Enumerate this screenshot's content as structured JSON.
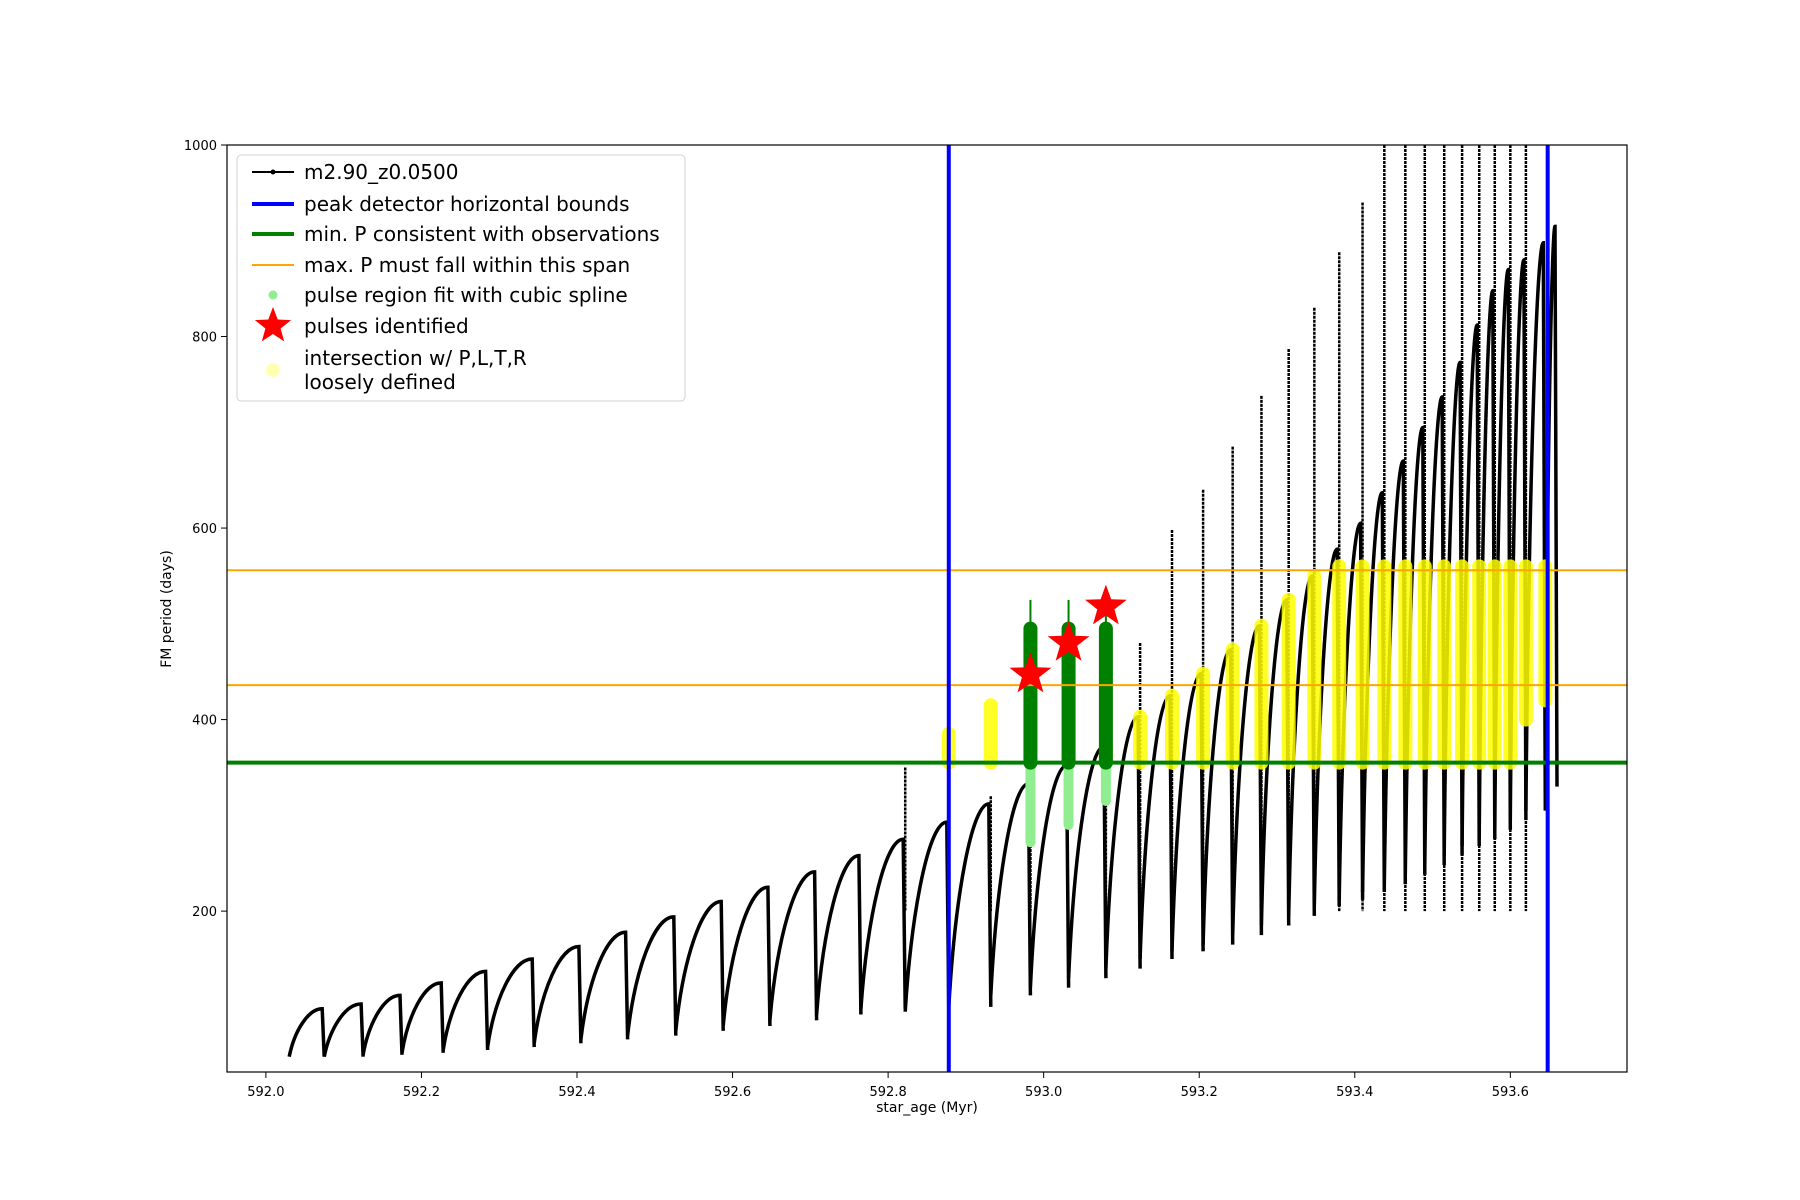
{
  "chart_data": {
    "type": "line",
    "title": "",
    "xlabel": "star_age (Myr)",
    "ylabel": "FM period (days)",
    "xlim": [
      591.95,
      593.75
    ],
    "ylim": [
      32,
      1000
    ],
    "x_ticks": [
      592.0,
      592.2,
      592.4,
      592.6,
      592.8,
      593.0,
      593.2,
      593.4,
      593.6
    ],
    "x_tick_labels": [
      "592.0",
      "592.2",
      "592.4",
      "592.6",
      "592.8",
      "593.0",
      "593.2",
      "593.4",
      "593.6"
    ],
    "y_ticks": [
      200,
      400,
      600,
      800,
      1000
    ],
    "y_tick_labels": [
      "200",
      "400",
      "600",
      "800",
      "1000"
    ],
    "grid": false,
    "legend_position": "top-left",
    "colors": {
      "model": "#000000",
      "bounds": "#0000ff",
      "min_p": "#008000",
      "max_p": "#ffa500",
      "spline": "#90ee90",
      "pulses": "#ff0000",
      "intersection": "#ffff00"
    },
    "series": [
      {
        "name": "m2.90_z0.0500",
        "kind": "line-with-markers",
        "pulse_cycles": [
          {
            "x_start": 592.03,
            "x_end": 592.075,
            "p_min": 48,
            "p_max": 98
          },
          {
            "x_start": 592.075,
            "x_end": 592.125,
            "p_min": 48,
            "p_max": 103
          },
          {
            "x_start": 592.125,
            "x_end": 592.175,
            "p_min": 50,
            "p_max": 112
          },
          {
            "x_start": 592.175,
            "x_end": 592.228,
            "p_min": 52,
            "p_max": 125
          },
          {
            "x_start": 592.228,
            "x_end": 592.285,
            "p_min": 55,
            "p_max": 137
          },
          {
            "x_start": 592.285,
            "x_end": 592.345,
            "p_min": 58,
            "p_max": 150
          },
          {
            "x_start": 592.345,
            "x_end": 592.405,
            "p_min": 62,
            "p_max": 163
          },
          {
            "x_start": 592.405,
            "x_end": 592.465,
            "p_min": 66,
            "p_max": 178
          },
          {
            "x_start": 592.465,
            "x_end": 592.527,
            "p_min": 70,
            "p_max": 194
          },
          {
            "x_start": 592.527,
            "x_end": 592.588,
            "p_min": 75,
            "p_max": 210
          },
          {
            "x_start": 592.588,
            "x_end": 592.648,
            "p_min": 80,
            "p_max": 225
          },
          {
            "x_start": 592.648,
            "x_end": 592.708,
            "p_min": 86,
            "p_max": 241
          },
          {
            "x_start": 592.708,
            "x_end": 592.765,
            "p_min": 92,
            "p_max": 258
          },
          {
            "x_start": 592.765,
            "x_end": 592.822,
            "p_min": 98,
            "p_max": 275
          },
          {
            "x_start": 592.822,
            "x_end": 592.878,
            "p_min": 95,
            "p_max": 293
          },
          {
            "x_start": 592.878,
            "x_end": 592.932,
            "p_min": 100,
            "p_max": 312
          },
          {
            "x_start": 592.932,
            "x_end": 592.983,
            "p_min": 112,
            "p_max": 333
          },
          {
            "x_start": 592.983,
            "x_end": 593.032,
            "p_min": 120,
            "p_max": 352
          },
          {
            "x_start": 593.032,
            "x_end": 593.08,
            "p_min": 130,
            "p_max": 372
          },
          {
            "x_start": 593.08,
            "x_end": 593.124,
            "p_min": 140,
            "p_max": 403
          },
          {
            "x_start": 593.124,
            "x_end": 593.165,
            "p_min": 150,
            "p_max": 425
          },
          {
            "x_start": 593.165,
            "x_end": 593.205,
            "p_min": 158,
            "p_max": 448
          },
          {
            "x_start": 593.205,
            "x_end": 593.243,
            "p_min": 165,
            "p_max": 473
          },
          {
            "x_start": 593.243,
            "x_end": 593.28,
            "p_min": 175,
            "p_max": 498
          },
          {
            "x_start": 593.28,
            "x_end": 593.315,
            "p_min": 185,
            "p_max": 525
          },
          {
            "x_start": 593.315,
            "x_end": 593.348,
            "p_min": 195,
            "p_max": 550
          },
          {
            "x_start": 593.348,
            "x_end": 593.38,
            "p_min": 205,
            "p_max": 578
          },
          {
            "x_start": 593.38,
            "x_end": 593.41,
            "p_min": 212,
            "p_max": 605
          },
          {
            "x_start": 593.41,
            "x_end": 593.438,
            "p_min": 220,
            "p_max": 637
          },
          {
            "x_start": 593.438,
            "x_end": 593.465,
            "p_min": 228,
            "p_max": 670
          },
          {
            "x_start": 593.465,
            "x_end": 593.49,
            "p_min": 238,
            "p_max": 705
          },
          {
            "x_start": 593.49,
            "x_end": 593.515,
            "p_min": 248,
            "p_max": 737
          },
          {
            "x_start": 593.515,
            "x_end": 593.538,
            "p_min": 258,
            "p_max": 773
          },
          {
            "x_start": 593.538,
            "x_end": 593.56,
            "p_min": 268,
            "p_max": 812
          },
          {
            "x_start": 593.56,
            "x_end": 593.58,
            "p_min": 275,
            "p_max": 848
          },
          {
            "x_start": 593.58,
            "x_end": 593.6,
            "p_min": 285,
            "p_max": 870
          },
          {
            "x_start": 593.6,
            "x_end": 593.62,
            "p_min": 295,
            "p_max": 880
          },
          {
            "x_start": 593.62,
            "x_end": 593.645,
            "p_min": 305,
            "p_max": 898
          },
          {
            "x_start": 593.645,
            "x_end": 593.66,
            "p_min": 330,
            "p_max": 915
          }
        ],
        "spikes": [
          {
            "x": 592.822,
            "p_top": 350
          },
          {
            "x": 592.932,
            "p_top": 320
          },
          {
            "x": 592.983,
            "p_top": 340
          },
          {
            "x": 593.08,
            "p_top": 420
          },
          {
            "x": 593.124,
            "p_top": 480
          },
          {
            "x": 593.165,
            "p_top": 598
          },
          {
            "x": 593.205,
            "p_top": 640
          },
          {
            "x": 593.243,
            "p_top": 685
          },
          {
            "x": 593.28,
            "p_top": 738
          },
          {
            "x": 593.315,
            "p_top": 787
          },
          {
            "x": 593.348,
            "p_top": 830
          },
          {
            "x": 593.38,
            "p_top": 888
          },
          {
            "x": 593.41,
            "p_top": 940
          },
          {
            "x": 593.438,
            "p_top": 1000
          },
          {
            "x": 593.465,
            "p_top": 1000
          },
          {
            "x": 593.49,
            "p_top": 1000
          },
          {
            "x": 593.515,
            "p_top": 1000
          },
          {
            "x": 593.538,
            "p_top": 1000
          },
          {
            "x": 593.56,
            "p_top": 1000
          },
          {
            "x": 593.58,
            "p_top": 1000
          },
          {
            "x": 593.6,
            "p_top": 1000
          },
          {
            "x": 593.62,
            "p_top": 1000
          }
        ]
      },
      {
        "name": "peak detector horizontal bounds",
        "kind": "vline",
        "x": [
          592.878,
          593.648
        ]
      },
      {
        "name": "min. P consistent with observations",
        "kind": "hline",
        "y": 355
      },
      {
        "name": "max. P must fall within this span",
        "kind": "hline",
        "y": [
          436,
          556
        ]
      },
      {
        "name": "pulse region fit with cubic spline",
        "kind": "scatter",
        "regions": [
          {
            "x": 592.983,
            "y_min": 272,
            "y_max": 495
          },
          {
            "x": 593.032,
            "y_min": 290,
            "y_max": 495
          },
          {
            "x": 593.08,
            "y_min": 315,
            "y_max": 495
          }
        ]
      },
      {
        "name": "pulses identified",
        "kind": "marker-star",
        "x": [
          592.983,
          593.032,
          593.08
        ],
        "y": [
          447,
          480,
          518
        ]
      },
      {
        "name": "intersection w/ P,L,T,R\nloosely defined",
        "kind": "scatter",
        "regions": [
          {
            "x": 592.878,
            "y_min": 355,
            "y_max": 385
          },
          {
            "x": 592.932,
            "y_min": 355,
            "y_max": 415
          },
          {
            "x": 593.08,
            "y_min": 355,
            "y_max": 372
          },
          {
            "x": 593.124,
            "y_min": 355,
            "y_max": 403
          },
          {
            "x": 593.165,
            "y_min": 355,
            "y_max": 425
          },
          {
            "x": 593.205,
            "y_min": 355,
            "y_max": 448
          },
          {
            "x": 593.243,
            "y_min": 355,
            "y_max": 473
          },
          {
            "x": 593.28,
            "y_min": 355,
            "y_max": 498
          },
          {
            "x": 593.315,
            "y_min": 355,
            "y_max": 525
          },
          {
            "x": 593.348,
            "y_min": 355,
            "y_max": 550
          },
          {
            "x": 593.38,
            "y_min": 355,
            "y_max": 560
          },
          {
            "x": 593.41,
            "y_min": 355,
            "y_max": 560
          },
          {
            "x": 593.438,
            "y_min": 355,
            "y_max": 560
          },
          {
            "x": 593.465,
            "y_min": 355,
            "y_max": 560
          },
          {
            "x": 593.49,
            "y_min": 355,
            "y_max": 560
          },
          {
            "x": 593.515,
            "y_min": 355,
            "y_max": 560
          },
          {
            "x": 593.538,
            "y_min": 355,
            "y_max": 560
          },
          {
            "x": 593.56,
            "y_min": 355,
            "y_max": 560
          },
          {
            "x": 593.58,
            "y_min": 355,
            "y_max": 560
          },
          {
            "x": 593.6,
            "y_min": 355,
            "y_max": 560
          },
          {
            "x": 593.62,
            "y_min": 400,
            "y_max": 560
          },
          {
            "x": 593.645,
            "y_min": 420,
            "y_max": 560
          }
        ]
      }
    ]
  }
}
